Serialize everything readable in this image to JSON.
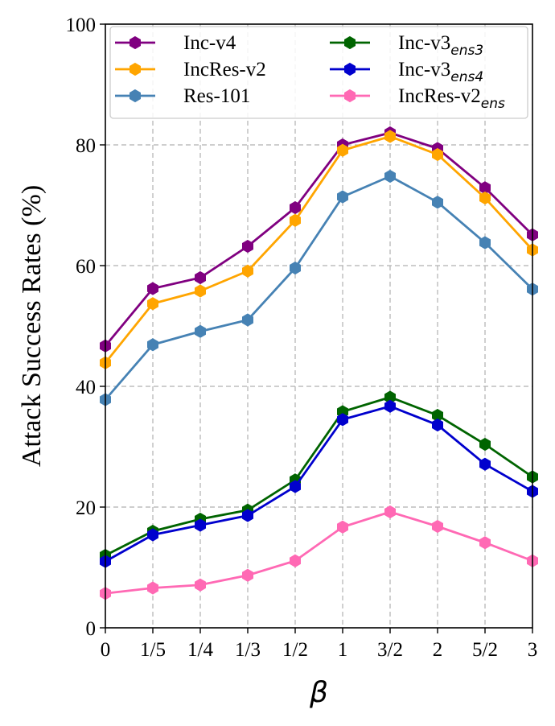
{
  "chart_data": {
    "type": "line",
    "title": "",
    "xlabel": "β",
    "ylabel": "Attack Success Rates (%)",
    "categories": [
      "0",
      "1/5",
      "1/4",
      "1/3",
      "1/2",
      "1",
      "3/2",
      "2",
      "5/2",
      "3"
    ],
    "ylim": [
      0,
      100
    ],
    "yticks": [
      "0",
      "20",
      "40",
      "60",
      "80",
      "100"
    ],
    "grid": true,
    "legend_position": "top",
    "series": [
      {
        "name": "Inc-v4",
        "base": "Inc-v4",
        "sub": "",
        "color": "#800080",
        "values": [
          46.7,
          56.2,
          58.0,
          63.2,
          69.6,
          80.0,
          82.0,
          79.4,
          72.9,
          65.1
        ]
      },
      {
        "name": "IncRes-v2",
        "base": "IncRes-v2",
        "sub": "",
        "color": "#FFA500",
        "values": [
          43.9,
          53.7,
          55.8,
          59.1,
          67.5,
          79.1,
          81.4,
          78.4,
          71.2,
          62.6
        ]
      },
      {
        "name": "Res-101",
        "base": "Res-101",
        "sub": "",
        "color": "#4682B4",
        "values": [
          37.8,
          46.9,
          49.1,
          51.0,
          59.6,
          71.4,
          74.8,
          70.5,
          63.8,
          56.1
        ]
      },
      {
        "name": "Inc-v3ens3",
        "base": "Inc-v3",
        "sub": "ens3",
        "color": "#006400",
        "values": [
          12.0,
          16.0,
          18.0,
          19.5,
          24.5,
          35.8,
          38.2,
          35.2,
          30.4,
          25.0
        ]
      },
      {
        "name": "Inc-v3ens4",
        "base": "Inc-v3",
        "sub": "ens4",
        "color": "#0000CD",
        "values": [
          11.0,
          15.4,
          17.0,
          18.6,
          23.4,
          34.5,
          36.7,
          33.6,
          27.1,
          22.6
        ]
      },
      {
        "name": "IncRes-v2ens",
        "base": "IncRes-v2",
        "sub": "ens",
        "color": "#FF69B4",
        "values": [
          5.7,
          6.6,
          7.1,
          8.7,
          11.1,
          16.7,
          19.2,
          16.8,
          14.1,
          11.1
        ]
      }
    ]
  }
}
